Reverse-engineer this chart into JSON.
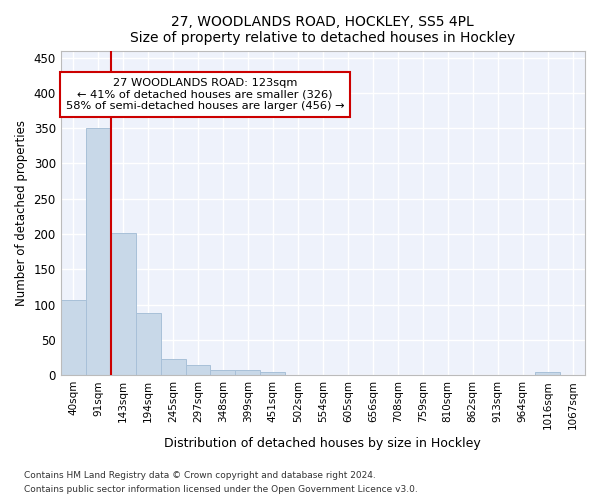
{
  "title": "27, WOODLANDS ROAD, HOCKLEY, SS5 4PL",
  "subtitle": "Size of property relative to detached houses in Hockley",
  "xlabel": "Distribution of detached houses by size in Hockley",
  "ylabel": "Number of detached properties",
  "bar_color": "#c8d8e8",
  "bar_edgecolor": "#a8c0d8",
  "background_color": "#eef2fb",
  "grid_color": "#ffffff",
  "fig_facecolor": "#ffffff",
  "categories": [
    "40sqm",
    "91sqm",
    "143sqm",
    "194sqm",
    "245sqm",
    "297sqm",
    "348sqm",
    "399sqm",
    "451sqm",
    "502sqm",
    "554sqm",
    "605sqm",
    "656sqm",
    "708sqm",
    "759sqm",
    "810sqm",
    "862sqm",
    "913sqm",
    "964sqm",
    "1016sqm",
    "1067sqm"
  ],
  "values": [
    107,
    350,
    202,
    88,
    23,
    15,
    8,
    8,
    5,
    0,
    0,
    0,
    0,
    0,
    0,
    0,
    0,
    0,
    0,
    4,
    0
  ],
  "vline_color": "#cc0000",
  "annotation_line1": "27 WOODLANDS ROAD: 123sqm",
  "annotation_line2": "← 41% of detached houses are smaller (326)",
  "annotation_line3": "58% of semi-detached houses are larger (456) →",
  "annotation_box_edgecolor": "#cc0000",
  "annotation_box_facecolor": "#ffffff",
  "ylim": [
    0,
    460
  ],
  "yticks": [
    0,
    50,
    100,
    150,
    200,
    250,
    300,
    350,
    400,
    450
  ],
  "footer_line1": "Contains HM Land Registry data © Crown copyright and database right 2024.",
  "footer_line2": "Contains public sector information licensed under the Open Government Licence v3.0."
}
